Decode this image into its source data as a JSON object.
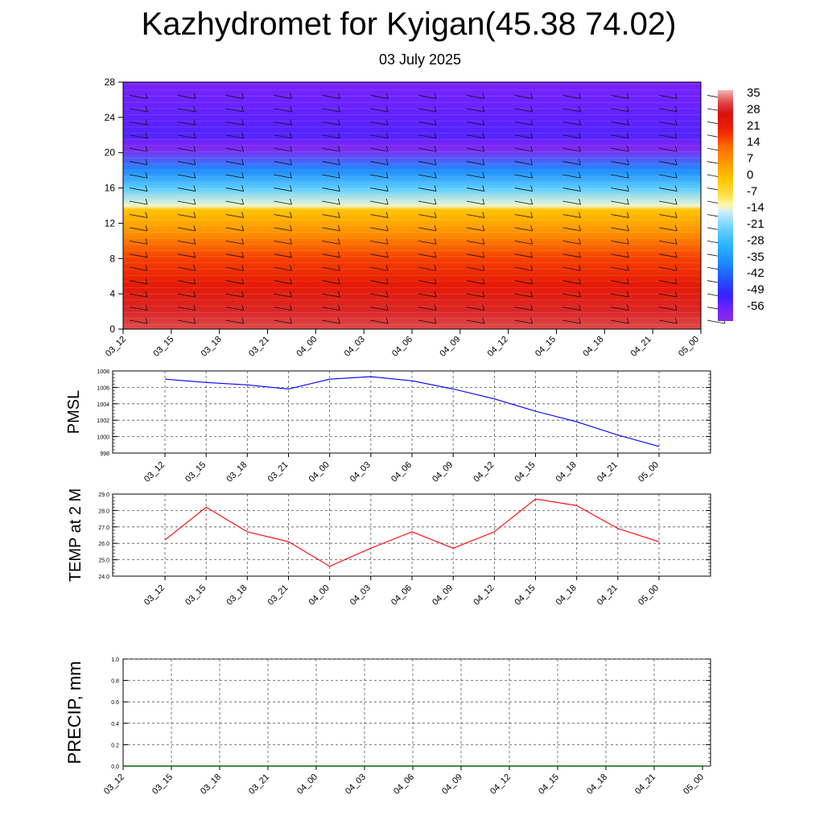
{
  "title": "Kazhydromet for Kyigan(45.38 74.02)",
  "subtitle": "03 July 2025",
  "time_labels": [
    "03_12",
    "03_15",
    "03_18",
    "03_21",
    "04_00",
    "04_03",
    "04_06",
    "04_09",
    "04_12",
    "04_15",
    "04_18",
    "04_21",
    "05_00"
  ],
  "colors": {
    "pmsl_line": "#0000ff",
    "temp_line": "#ff0000",
    "precip_line": "#006400"
  },
  "chart_data": [
    {
      "type": "heatmap",
      "name": "temperature-profile",
      "y_ticks": [
        0,
        4,
        8,
        12,
        16,
        20,
        24,
        28
      ],
      "ylim": [
        0,
        28
      ],
      "colorbar": {
        "labels": [
          "35",
          "28",
          "21",
          "14",
          "7",
          "0",
          "-7",
          "-14",
          "-21",
          "-28",
          "-35",
          "-42",
          "-49",
          "-56"
        ],
        "range": [
          -60,
          38
        ]
      },
      "layers": [
        {
          "height": 0,
          "temp": 33
        },
        {
          "height": 2,
          "temp": 30
        },
        {
          "height": 5,
          "temp": 24
        },
        {
          "height": 8,
          "temp": 18
        },
        {
          "height": 11,
          "temp": 8
        },
        {
          "height": 13.5,
          "temp": 0
        },
        {
          "height": 14,
          "temp": -12
        },
        {
          "height": 16,
          "temp": -22
        },
        {
          "height": 18,
          "temp": -35
        },
        {
          "height": 20.5,
          "temp": -58
        },
        {
          "height": 22,
          "temp": -52
        },
        {
          "height": 28,
          "temp": -56
        }
      ]
    },
    {
      "type": "line",
      "ylabel": "PMSL",
      "x": [
        "03_12",
        "03_15",
        "03_18",
        "03_21",
        "04_00",
        "04_03",
        "04_06",
        "04_09",
        "04_12",
        "04_15",
        "04_18",
        "04_21",
        "05_00"
      ],
      "ylim": [
        998,
        1008
      ],
      "y_ticks": [
        "998",
        "1000",
        "1002",
        "1004",
        "1006",
        "1008"
      ],
      "values": [
        1007.0,
        1006.6,
        1006.3,
        1005.8,
        1007.0,
        1007.3,
        1006.8,
        1005.8,
        1004.6,
        1003.1,
        1001.8,
        1000.2,
        998.8
      ]
    },
    {
      "type": "line",
      "ylabel": "TEMP at 2 M",
      "x": [
        "03_12",
        "03_15",
        "03_18",
        "03_21",
        "04_00",
        "04_03",
        "04_06",
        "04_09",
        "04_12",
        "04_15",
        "04_18",
        "04_21",
        "05_00"
      ],
      "ylim": [
        24,
        29
      ],
      "y_ticks": [
        "24.0",
        "25.0",
        "26.0",
        "27.0",
        "28.0",
        "29.0"
      ],
      "values": [
        26.2,
        28.2,
        26.7,
        26.1,
        24.6,
        25.7,
        26.7,
        25.7,
        26.7,
        28.7,
        28.3,
        26.9,
        26.1
      ]
    },
    {
      "type": "line",
      "ylabel": "PRECIP, mm",
      "x": [
        "03_12",
        "03_15",
        "03_18",
        "03_21",
        "04_00",
        "04_03",
        "04_06",
        "04_09",
        "04_12",
        "04_15",
        "04_18",
        "04_21",
        "05_00"
      ],
      "ylim": [
        0,
        1
      ],
      "y_ticks": [
        "0.0",
        "0.2",
        "0.4",
        "0.6",
        "0.8",
        "1.0"
      ],
      "values": [
        0,
        0,
        0,
        0,
        0,
        0,
        0,
        0,
        0,
        0,
        0,
        0,
        0
      ]
    }
  ]
}
